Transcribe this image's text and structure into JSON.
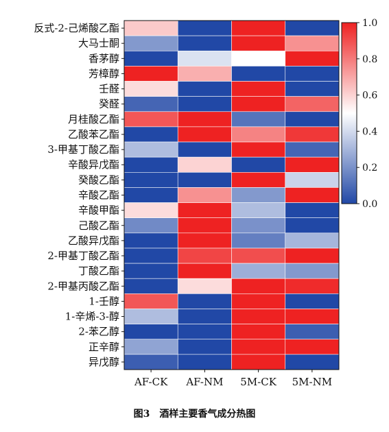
{
  "caption": "图3　酒样主要香气成分热图",
  "chart_data": {
    "type": "heatmap",
    "columns": [
      "AF-CK",
      "AF-NM",
      "5M-CK",
      "5M-NM"
    ],
    "rows": [
      "反式-2-己烯酸乙酯",
      "大马士酮",
      "香茅醇",
      "芳樟醇",
      "壬醛",
      "癸醛",
      "月桂酸乙酯",
      "乙酸苯乙酯",
      "3-甲基丁酸乙酯",
      "辛酸异戊酯",
      "癸酸乙酯",
      "辛酸乙酯",
      "辛酸甲酯",
      "己酸乙酯",
      "乙酸异戊酯",
      "2-甲基丁酸乙酯",
      "丁酸乙酯",
      "2-甲基丙酸乙酯",
      "1-壬醇",
      "1-辛烯-3-醇",
      "2-苯乙醇",
      "正辛醇",
      "异戊醇"
    ],
    "values": [
      [
        0.62,
        0.0,
        1.0,
        0.0
      ],
      [
        0.22,
        0.0,
        1.0,
        0.75
      ],
      [
        0.0,
        0.42,
        0.5,
        1.0
      ],
      [
        1.0,
        0.68,
        0.0,
        0.0
      ],
      [
        0.58,
        0.0,
        1.0,
        0.0
      ],
      [
        0.08,
        0.0,
        1.0,
        0.85
      ],
      [
        0.88,
        1.0,
        0.12,
        0.0
      ],
      [
        0.0,
        1.0,
        0.78,
        0.95
      ],
      [
        0.32,
        0.0,
        1.0,
        0.08
      ],
      [
        0.0,
        0.6,
        0.0,
        1.0
      ],
      [
        0.0,
        0.0,
        1.0,
        0.38
      ],
      [
        0.0,
        0.75,
        0.22,
        1.0
      ],
      [
        0.58,
        1.0,
        0.32,
        0.0
      ],
      [
        0.18,
        1.0,
        0.2,
        0.0
      ],
      [
        0.0,
        1.0,
        0.15,
        0.3
      ],
      [
        0.0,
        0.92,
        0.9,
        1.0
      ],
      [
        0.0,
        1.0,
        0.28,
        0.22
      ],
      [
        0.0,
        0.58,
        1.0,
        0.98
      ],
      [
        0.88,
        0.0,
        1.0,
        0.0
      ],
      [
        0.32,
        0.0,
        1.0,
        1.0
      ],
      [
        0.0,
        0.0,
        1.0,
        0.06
      ],
      [
        0.25,
        0.0,
        1.0,
        1.0
      ],
      [
        0.06,
        0.0,
        1.0,
        0.0
      ]
    ],
    "colorbar": {
      "min": 0.0,
      "max": 1.0,
      "ticks": [
        "0.0",
        "0.2",
        "0.4",
        "0.6",
        "0.8",
        "1.0"
      ]
    },
    "colorscale": [
      "#2148a6",
      "#ffffff",
      "#ee2222"
    ]
  }
}
